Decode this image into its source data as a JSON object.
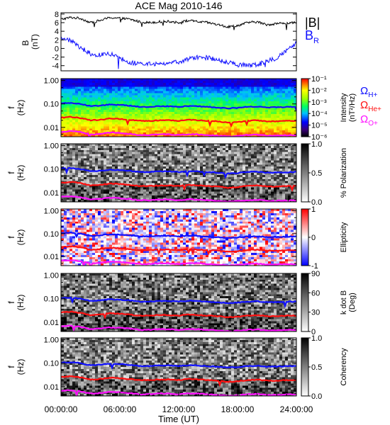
{
  "title": "ACE Mag 2010-146",
  "colors": {
    "black": "#000000",
    "blue": "#1010ff",
    "red": "#ff1010",
    "magenta": "#ff10ff"
  },
  "x_axis": {
    "label": "Time (UT)",
    "ticks": [
      "00:00:00",
      "06:00:00",
      "12:00:00",
      "18:00:00",
      "24:00:00"
    ],
    "tick_hours": [
      0,
      6,
      12,
      18,
      24
    ],
    "range_hours": [
      0,
      24
    ]
  },
  "legends": {
    "b_total": "|B|",
    "b_r_main": "B",
    "b_r_sub": "R",
    "omega_h": {
      "main": "Ω",
      "sub": "H+"
    },
    "omega_he": {
      "main": "Ω",
      "sub": "He+"
    },
    "omega_o": {
      "main": "Ω",
      "sub": "O+"
    }
  },
  "panels": {
    "b": {
      "ylabel_main": "B",
      "ylabel_unit": "(nT)",
      "ticks": [
        "8",
        "6",
        "4",
        "2",
        "0",
        "-2",
        "-4"
      ],
      "tick_values": [
        8,
        6,
        4,
        2,
        0,
        -2,
        -4
      ],
      "ylim": [
        -5.2,
        8.3
      ]
    },
    "intensity": {
      "ylabel_main": "f",
      "ylabel_unit": "(Hz)",
      "ticks": [
        "1.00",
        "0.10",
        "0.01"
      ],
      "colorbar_label": "Intensity",
      "colorbar_unit": "(nT²/Hz)",
      "colorbar_ticks": [
        "10⁻¹",
        "10⁻²",
        "10⁻³",
        "10⁻⁴",
        "10⁻⁵",
        "10⁻⁶"
      ],
      "colorbar_tick_exponents": [
        -1,
        -2,
        -3,
        -4,
        -5,
        -6
      ]
    },
    "polarization": {
      "ylabel_main": "f",
      "ylabel_unit": "(Hz)",
      "ticks": [
        "1.00",
        "0.10",
        "0.01"
      ],
      "colorbar_label": "% Polarization",
      "colorbar_ticks": [
        "1.0",
        "0.5",
        "0.0"
      ]
    },
    "ellipticity": {
      "ylabel_main": "f",
      "ylabel_unit": "(Hz)",
      "ticks": [
        "1.00",
        "0.10",
        "0.01"
      ],
      "colorbar_label": "Ellipticity",
      "colorbar_ticks": [
        "1",
        "0",
        "-1"
      ]
    },
    "kdotb": {
      "ylabel_main": "f",
      "ylabel_unit": "(Hz)",
      "ticks": [
        "1.00",
        "0.10",
        "0.01"
      ],
      "colorbar_label": "k dot B",
      "colorbar_unit": "(Deg)",
      "colorbar_ticks": [
        "90",
        "60",
        "30",
        "0"
      ]
    },
    "coherency": {
      "ylabel_main": "f",
      "ylabel_unit": "(Hz)",
      "ticks": [
        "1.00",
        "0.10",
        "0.01"
      ],
      "colorbar_label": "Coherency",
      "colorbar_ticks": [
        "1.0",
        "0.5",
        "0.0"
      ]
    }
  },
  "chart_data": [
    {
      "type": "line",
      "panel": "magnetic field",
      "x": [
        0,
        1,
        2,
        3,
        4,
        5,
        6,
        7,
        8,
        9,
        10,
        11,
        12,
        13,
        14,
        15,
        16,
        17,
        18,
        19,
        20,
        21,
        22,
        23,
        24
      ],
      "series": [
        {
          "name": "|B|",
          "color": "black",
          "values": [
            6.8,
            7.2,
            7.0,
            6.0,
            6.5,
            7.2,
            7.0,
            6.8,
            6.2,
            6.0,
            6.2,
            6.3,
            6.0,
            6.5,
            6.2,
            6.0,
            5.5,
            5.0,
            5.3,
            6.0,
            6.2,
            5.5,
            5.8,
            5.9,
            6.0
          ]
        },
        {
          "name": "B_R",
          "color": "blue",
          "values": [
            2.5,
            1.8,
            0.2,
            -1.2,
            -1.5,
            -1.2,
            -2.2,
            -3.2,
            -3.5,
            -3.6,
            -3.5,
            -3.4,
            -3.2,
            -2.5,
            -2.0,
            -2.2,
            -2.6,
            -3.2,
            -3.8,
            -3.9,
            -3.8,
            -3.0,
            -2.2,
            -0.5,
            1.5
          ]
        }
      ],
      "xlim": [
        0,
        24
      ],
      "ylim": [
        -5.2,
        8.3
      ],
      "grid": false
    },
    {
      "type": "heatmap",
      "panel": "intensity spectrogram",
      "x": [
        0,
        1,
        2,
        3,
        4,
        5,
        6,
        7,
        8,
        9,
        10,
        11,
        12,
        13,
        14,
        15,
        16,
        17,
        18,
        19,
        20,
        21,
        22,
        23,
        24
      ],
      "yscale": "log",
      "ylim_hz": [
        0.004,
        1.2
      ],
      "series": [
        {
          "name": "ΩH+",
          "color": "blue",
          "values_hz": [
            0.105,
            0.11,
            0.1,
            0.08,
            0.085,
            0.095,
            0.09,
            0.085,
            0.075,
            0.075,
            0.08,
            0.08,
            0.075,
            0.082,
            0.08,
            0.075,
            0.07,
            0.065,
            0.068,
            0.075,
            0.078,
            0.07,
            0.072,
            0.074,
            0.076
          ]
        },
        {
          "name": "ΩHe+",
          "color": "red",
          "values_hz": [
            0.026,
            0.028,
            0.025,
            0.02,
            0.021,
            0.024,
            0.023,
            0.021,
            0.019,
            0.019,
            0.02,
            0.02,
            0.019,
            0.021,
            0.02,
            0.019,
            0.018,
            0.016,
            0.017,
            0.019,
            0.02,
            0.018,
            0.018,
            0.019,
            0.019
          ]
        },
        {
          "name": "ΩO+",
          "color": "magenta",
          "values_hz": [
            0.0065,
            0.007,
            0.0063,
            0.005,
            0.0053,
            0.006,
            0.0057,
            0.0053,
            0.0047,
            0.0047,
            0.005,
            0.005,
            0.0047,
            0.0051,
            0.005,
            0.0047,
            0.0044,
            0.0041,
            0.0043,
            0.0047,
            0.0049,
            0.0044,
            0.0045,
            0.0046,
            0.0047
          ]
        }
      ],
      "colorbar_range_exp": [
        -6.5,
        -0.5
      ]
    },
    {
      "type": "heatmap",
      "panel": "% polarization",
      "colorbar_range": [
        0,
        1
      ],
      "yscale": "log"
    },
    {
      "type": "heatmap",
      "panel": "ellipticity",
      "colorbar_range": [
        -1,
        1
      ],
      "yscale": "log"
    },
    {
      "type": "heatmap",
      "panel": "k dot B",
      "colorbar_range_deg": [
        0,
        90
      ],
      "yscale": "log"
    },
    {
      "type": "heatmap",
      "panel": "coherency",
      "colorbar_range": [
        0,
        1
      ],
      "yscale": "log"
    }
  ]
}
